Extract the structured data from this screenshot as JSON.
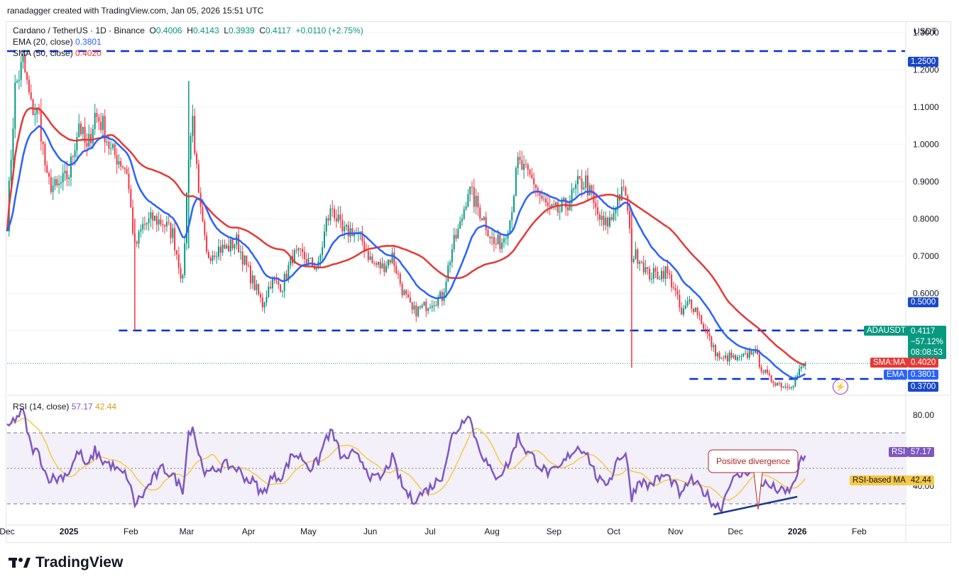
{
  "header": {
    "attribution": "ranadagger created with TradingView.com, Jan 05, 2026 15:51 UTC",
    "symbol": "Cardano / TetherUS · 1D · Binance",
    "ohlc": {
      "o_label": "O",
      "o": "0.4006",
      "h_label": "H",
      "h": "0.4143",
      "l_label": "L",
      "l": "0.3939",
      "c_label": "C",
      "c": "0.4117",
      "chg": "+0.0110 (+2.75%)"
    },
    "ema_label": "EMA (20, close)",
    "ema_value": "0.3801",
    "sma_label": "SMA (50, close)",
    "sma_value": "0.4020",
    "rsi_label": "RSI (14, close)",
    "rsi_value": "57.17",
    "rsi_ma_value": "42.44"
  },
  "colors": {
    "up": "#089981",
    "down": "#f23645",
    "ema": "#2962ff",
    "sma": "#e53935",
    "rsi": "#7e57c2",
    "rsi_ma": "#f7c948",
    "level": "#0c2fd6",
    "badge_blue": "#1848cc",
    "trend": "#1e3a8a",
    "annotation": "#b22222"
  },
  "price_axis": {
    "unit": "USDT",
    "ticks": [
      "1.3000",
      "1.2000",
      "1.1000",
      "1.0000",
      "0.9000",
      "0.8000",
      "0.7000",
      "0.6000",
      "0.5000"
    ],
    "min": 0.33,
    "max": 1.33
  },
  "price_badges": {
    "level_top": "1.2500",
    "level_mid": "0.5000",
    "level_low": "0.3700",
    "symbol": "ADAUSDT",
    "last": "0.4117",
    "change": "−57.12%",
    "countdown": "08:08:53",
    "sma_tag": "SMA:MA",
    "sma": "0.4020",
    "ema_tag": "EMA",
    "ema": "0.3801"
  },
  "rsi_axis": {
    "ticks": [
      "80.00",
      "60.00",
      "40.00"
    ],
    "rsi_tag": "RSI",
    "rsi": "57.17",
    "ma_tag": "RSI-based MA",
    "ma": "42.44"
  },
  "x_axis": {
    "labels": [
      "Dec",
      "2025",
      "Feb",
      "Mar",
      "Apr",
      "May",
      "Jun",
      "Jul",
      "Aug",
      "Sep",
      "Oct",
      "Nov",
      "Dec",
      "2026",
      "Feb"
    ]
  },
  "annotation": {
    "text": "Positive divergence"
  },
  "brand": {
    "name": "TradingView"
  },
  "chart_data": {
    "type": "candlestick",
    "title": "Cardano / TetherUS · 1D · Binance",
    "y_unit": "USDT",
    "ylim": [
      0.33,
      1.33
    ],
    "horizontal_levels": [
      1.25,
      0.5,
      0.37
    ],
    "price_path": [
      [
        "2024-12-01",
        0.79
      ],
      [
        "2024-12-05",
        1.15
      ],
      [
        "2024-12-09",
        1.22
      ],
      [
        "2024-12-13",
        1.1
      ],
      [
        "2024-12-17",
        1.08
      ],
      [
        "2024-12-21",
        0.9
      ],
      [
        "2024-12-26",
        0.88
      ],
      [
        "2025-01-01",
        0.92
      ],
      [
        "2025-01-06",
        1.06
      ],
      [
        "2025-01-10",
        0.98
      ],
      [
        "2025-01-14",
        1.08
      ],
      [
        "2025-01-18",
        1.05
      ],
      [
        "2025-01-22",
        0.98
      ],
      [
        "2025-01-26",
        0.96
      ],
      [
        "2025-01-30",
        0.93
      ],
      [
        "2025-02-03",
        0.72
      ],
      [
        "2025-02-07",
        0.78
      ],
      [
        "2025-02-12",
        0.8
      ],
      [
        "2025-02-17",
        0.79
      ],
      [
        "2025-02-22",
        0.76
      ],
      [
        "2025-02-27",
        0.63
      ],
      [
        "2025-03-02",
        0.98
      ],
      [
        "2025-03-04",
        1.07
      ],
      [
        "2025-03-07",
        0.85
      ],
      [
        "2025-03-11",
        0.7
      ],
      [
        "2025-03-16",
        0.72
      ],
      [
        "2025-03-21",
        0.72
      ],
      [
        "2025-03-26",
        0.74
      ],
      [
        "2025-03-31",
        0.67
      ],
      [
        "2025-04-04",
        0.62
      ],
      [
        "2025-04-08",
        0.57
      ],
      [
        "2025-04-12",
        0.63
      ],
      [
        "2025-04-18",
        0.62
      ],
      [
        "2025-04-23",
        0.7
      ],
      [
        "2025-04-28",
        0.7
      ],
      [
        "2025-05-02",
        0.68
      ],
      [
        "2025-05-06",
        0.67
      ],
      [
        "2025-05-10",
        0.79
      ],
      [
        "2025-05-13",
        0.83
      ],
      [
        "2025-05-18",
        0.76
      ],
      [
        "2025-05-23",
        0.77
      ],
      [
        "2025-05-28",
        0.74
      ],
      [
        "2025-06-02",
        0.68
      ],
      [
        "2025-06-07",
        0.67
      ],
      [
        "2025-06-12",
        0.7
      ],
      [
        "2025-06-17",
        0.61
      ],
      [
        "2025-06-22",
        0.55
      ],
      [
        "2025-06-27",
        0.56
      ],
      [
        "2025-07-02",
        0.58
      ],
      [
        "2025-07-07",
        0.59
      ],
      [
        "2025-07-12",
        0.72
      ],
      [
        "2025-07-16",
        0.78
      ],
      [
        "2025-07-20",
        0.88
      ],
      [
        "2025-07-24",
        0.84
      ],
      [
        "2025-07-28",
        0.8
      ],
      [
        "2025-08-02",
        0.73
      ],
      [
        "2025-08-06",
        0.74
      ],
      [
        "2025-08-10",
        0.8
      ],
      [
        "2025-08-14",
        0.95
      ],
      [
        "2025-08-18",
        0.92
      ],
      [
        "2025-08-22",
        0.9
      ],
      [
        "2025-08-26",
        0.85
      ],
      [
        "2025-08-30",
        0.82
      ],
      [
        "2025-09-04",
        0.82
      ],
      [
        "2025-09-09",
        0.85
      ],
      [
        "2025-09-13",
        0.89
      ],
      [
        "2025-09-17",
        0.9
      ],
      [
        "2025-09-22",
        0.82
      ],
      [
        "2025-09-26",
        0.78
      ],
      [
        "2025-09-30",
        0.8
      ],
      [
        "2025-10-03",
        0.86
      ],
      [
        "2025-10-07",
        0.87
      ],
      [
        "2025-10-10",
        0.7
      ],
      [
        "2025-10-14",
        0.7
      ],
      [
        "2025-10-18",
        0.65
      ],
      [
        "2025-10-23",
        0.65
      ],
      [
        "2025-10-27",
        0.66
      ],
      [
        "2025-10-31",
        0.62
      ],
      [
        "2025-11-04",
        0.54
      ],
      [
        "2025-11-08",
        0.58
      ],
      [
        "2025-11-12",
        0.55
      ],
      [
        "2025-11-16",
        0.5
      ],
      [
        "2025-11-20",
        0.45
      ],
      [
        "2025-11-24",
        0.42
      ],
      [
        "2025-11-28",
        0.43
      ],
      [
        "2025-12-02",
        0.42
      ],
      [
        "2025-12-06",
        0.43
      ],
      [
        "2025-12-10",
        0.45
      ],
      [
        "2025-12-14",
        0.4
      ],
      [
        "2025-12-18",
        0.37
      ],
      [
        "2025-12-22",
        0.36
      ],
      [
        "2025-12-26",
        0.35
      ],
      [
        "2025-12-30",
        0.36
      ],
      [
        "2026-01-02",
        0.39
      ],
      [
        "2026-01-05",
        0.4117
      ]
    ],
    "rsi_path": [
      [
        "2024-12-01",
        72
      ],
      [
        "2024-12-05",
        78
      ],
      [
        "2024-12-09",
        82
      ],
      [
        "2024-12-13",
        62
      ],
      [
        "2024-12-17",
        58
      ],
      [
        "2024-12-21",
        45
      ],
      [
        "2024-12-26",
        44
      ],
      [
        "2025-01-01",
        48
      ],
      [
        "2025-01-06",
        60
      ],
      [
        "2025-01-10",
        50
      ],
      [
        "2025-01-14",
        60
      ],
      [
        "2025-01-18",
        54
      ],
      [
        "2025-01-22",
        52
      ],
      [
        "2025-01-26",
        48
      ],
      [
        "2025-01-30",
        46
      ],
      [
        "2025-02-03",
        30
      ],
      [
        "2025-02-07",
        35
      ],
      [
        "2025-02-12",
        44
      ],
      [
        "2025-02-17",
        50
      ],
      [
        "2025-02-22",
        46
      ],
      [
        "2025-02-27",
        38
      ],
      [
        "2025-03-02",
        70
      ],
      [
        "2025-03-04",
        74
      ],
      [
        "2025-03-07",
        58
      ],
      [
        "2025-03-11",
        46
      ],
      [
        "2025-03-16",
        50
      ],
      [
        "2025-03-21",
        52
      ],
      [
        "2025-03-26",
        50
      ],
      [
        "2025-03-31",
        44
      ],
      [
        "2025-04-04",
        42
      ],
      [
        "2025-04-08",
        35
      ],
      [
        "2025-04-12",
        44
      ],
      [
        "2025-04-18",
        46
      ],
      [
        "2025-04-23",
        58
      ],
      [
        "2025-04-28",
        56
      ],
      [
        "2025-05-02",
        50
      ],
      [
        "2025-05-06",
        54
      ],
      [
        "2025-05-10",
        68
      ],
      [
        "2025-05-13",
        70
      ],
      [
        "2025-05-18",
        55
      ],
      [
        "2025-05-23",
        58
      ],
      [
        "2025-05-28",
        54
      ],
      [
        "2025-06-02",
        44
      ],
      [
        "2025-06-07",
        45
      ],
      [
        "2025-06-12",
        56
      ],
      [
        "2025-06-17",
        40
      ],
      [
        "2025-06-22",
        32
      ],
      [
        "2025-06-27",
        36
      ],
      [
        "2025-07-02",
        40
      ],
      [
        "2025-07-07",
        46
      ],
      [
        "2025-07-12",
        68
      ],
      [
        "2025-07-16",
        74
      ],
      [
        "2025-07-20",
        82
      ],
      [
        "2025-07-24",
        66
      ],
      [
        "2025-07-28",
        56
      ],
      [
        "2025-08-02",
        45
      ],
      [
        "2025-08-06",
        48
      ],
      [
        "2025-08-10",
        54
      ],
      [
        "2025-08-14",
        68
      ],
      [
        "2025-08-18",
        60
      ],
      [
        "2025-08-22",
        56
      ],
      [
        "2025-08-26",
        50
      ],
      [
        "2025-08-30",
        47
      ],
      [
        "2025-09-04",
        50
      ],
      [
        "2025-09-09",
        58
      ],
      [
        "2025-09-13",
        62
      ],
      [
        "2025-09-17",
        60
      ],
      [
        "2025-09-22",
        46
      ],
      [
        "2025-09-26",
        40
      ],
      [
        "2025-09-30",
        46
      ],
      [
        "2025-10-03",
        56
      ],
      [
        "2025-10-07",
        58
      ],
      [
        "2025-10-10",
        34
      ],
      [
        "2025-10-14",
        44
      ],
      [
        "2025-10-18",
        40
      ],
      [
        "2025-10-23",
        44
      ],
      [
        "2025-10-27",
        46
      ],
      [
        "2025-10-31",
        42
      ],
      [
        "2025-11-04",
        34
      ],
      [
        "2025-11-08",
        44
      ],
      [
        "2025-11-12",
        40
      ],
      [
        "2025-11-16",
        36
      ],
      [
        "2025-11-20",
        30
      ],
      [
        "2025-11-24",
        28
      ],
      [
        "2025-11-28",
        42
      ],
      [
        "2025-12-02",
        45
      ],
      [
        "2025-12-06",
        48
      ],
      [
        "2025-12-10",
        50
      ],
      [
        "2025-12-14",
        42
      ],
      [
        "2025-12-18",
        40
      ],
      [
        "2025-12-22",
        38
      ],
      [
        "2025-12-26",
        36
      ],
      [
        "2025-12-30",
        40
      ],
      [
        "2026-01-02",
        52
      ],
      [
        "2026-01-05",
        57.17
      ]
    ]
  }
}
